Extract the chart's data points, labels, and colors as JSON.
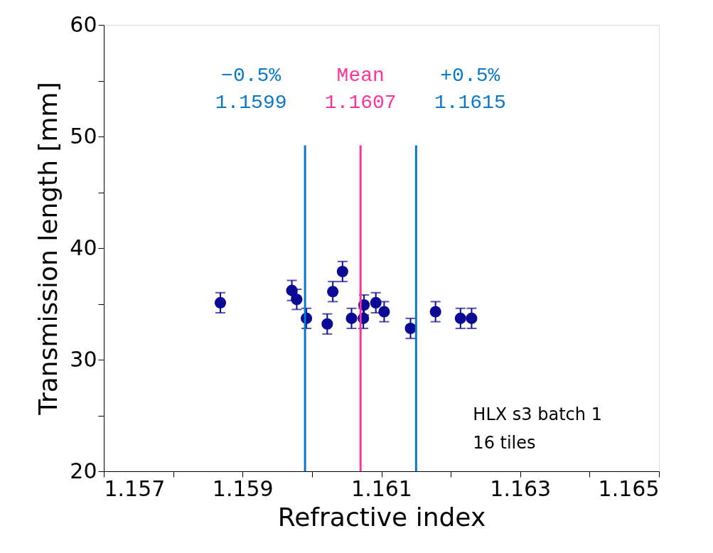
{
  "chart_data": {
    "type": "scatter",
    "xlabel": "Refractive index",
    "ylabel": "Transmission length [mm]",
    "x": [
      1.15868,
      1.15971,
      1.15978,
      1.15992,
      1.16022,
      1.1603,
      1.16044,
      1.16057,
      1.16074,
      1.16075,
      1.16092,
      1.16104,
      1.16142,
      1.16178,
      1.16214,
      1.1623
    ],
    "series": [
      {
        "color": "#0a0a96",
        "values": [
          35.1,
          36.2,
          35.4,
          33.7,
          33.2,
          36.1,
          37.9,
          33.7,
          33.7,
          34.9,
          35.1,
          34.3,
          32.8,
          34.3,
          33.7,
          33.7
        ],
        "errors": [
          0.9,
          0.9,
          0.9,
          0.9,
          0.9,
          0.9,
          0.9,
          0.9,
          0.9,
          0.9,
          0.9,
          0.9,
          0.9,
          0.9,
          0.9,
          0.9
        ]
      }
    ],
    "marker": "circle",
    "xlim": [
      1.157,
      1.165
    ],
    "xticks": [
      1.157,
      {
        "value": 1.158,
        "label": null
      },
      1.159,
      {
        "value": 1.16,
        "label": null
      },
      1.161,
      {
        "value": 1.162,
        "label": null
      },
      1.163,
      {
        "value": 1.164,
        "label": null
      },
      1.165
    ],
    "ylim": [
      20,
      60
    ],
    "yticks": [
      20,
      {
        "value": 25,
        "label": null
      },
      30,
      {
        "value": 35,
        "label": null
      },
      40,
      {
        "value": 45,
        "label": null
      },
      50,
      {
        "value": 55,
        "label": null
      },
      60
    ],
    "ref_lines": [
      {
        "axis": "x",
        "value": 1.1599,
        "label": "−0.5%\n1.1599",
        "color": "#0a78c8",
        "line_style": "solid"
      },
      {
        "axis": "x",
        "value": 1.1607,
        "label": "Mean\n1.1607",
        "color": "#ff3399",
        "line_style": "solid"
      },
      {
        "axis": "x",
        "value": 1.1615,
        "label": "+0.5%\n1.1615",
        "color": "#0a78c8",
        "line_style": "solid"
      }
    ],
    "annotations": [
      "HLX s3 batch 1\n16 tiles"
    ],
    "grid": false
  }
}
